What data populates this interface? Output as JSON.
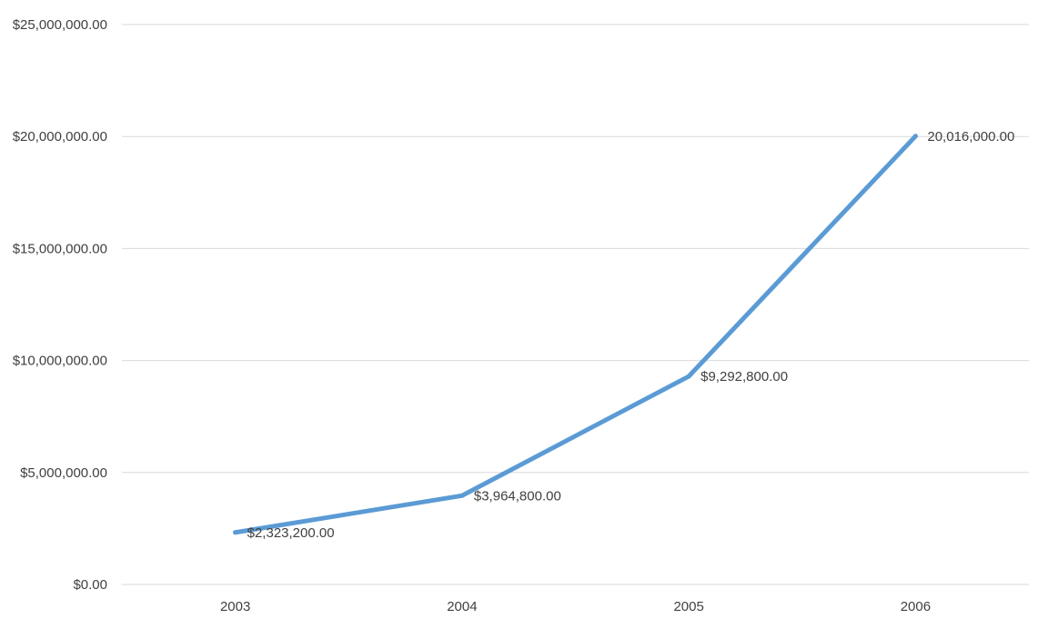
{
  "chart_data": {
    "type": "line",
    "title": "",
    "xlabel": "",
    "ylabel": "",
    "categories": [
      "2003",
      "2004",
      "2005",
      "2006"
    ],
    "series": [
      {
        "values": [
          2323200,
          3964800,
          9292800,
          20016000
        ],
        "data_labels": [
          "$2,323,200.00",
          "$3,964,800.00",
          "$9,292,800.00",
          "20,016,000.00"
        ],
        "color": "#5b9bd5"
      }
    ],
    "ylim": [
      0,
      25000000
    ],
    "y_ticks": [
      0,
      5000000,
      10000000,
      15000000,
      20000000,
      25000000
    ],
    "y_tick_labels": [
      "$0.00",
      "$5,000,000.00",
      "$10,000,000.00",
      "$15,000,000.00",
      "$20,000,000.00",
      "$25,000,000.00"
    ],
    "grid": true,
    "gridline_color": "#d9d9d9",
    "legend": "none"
  }
}
